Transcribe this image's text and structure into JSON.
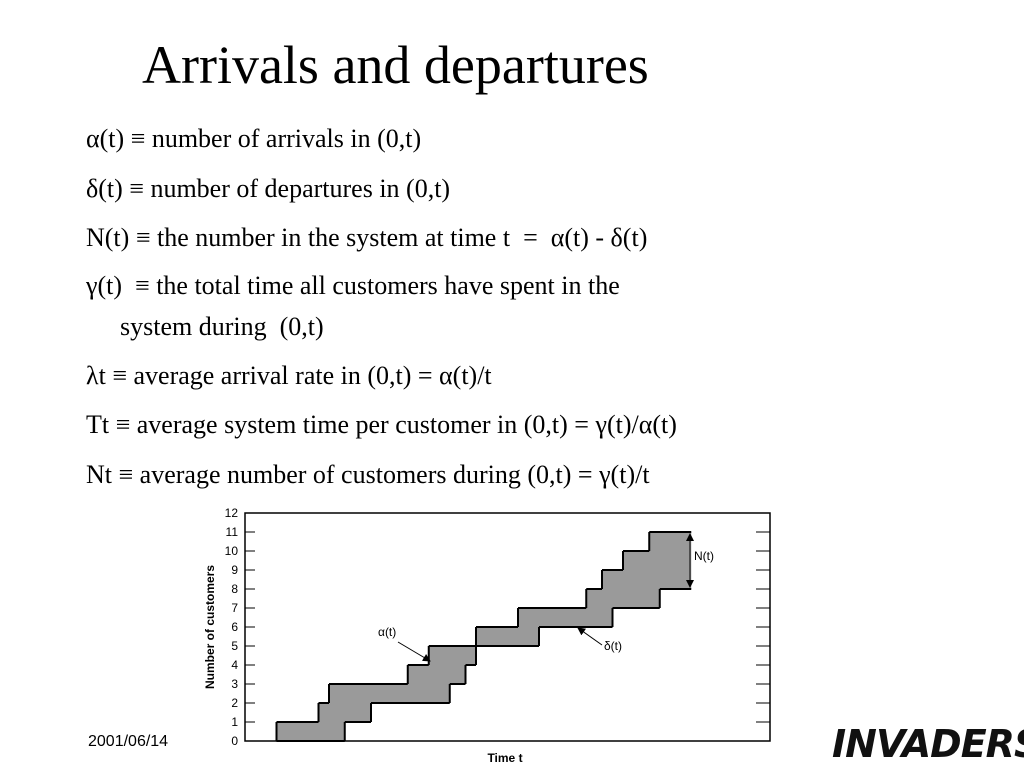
{
  "title": "Arrivals and departures",
  "items": [
    "α(t) ≡ number of arrivals in (0,t)",
    "δ(t) ≡ number of departures in (0,t)",
    "N(t) ≡ the number in the system at time t  =  α(t) - δ(t)",
    "γ(t)  ≡ the total time all customers have spent in the",
    "system during  (0,t)",
    "λt ≡ average arrival rate in (0,t) = α(t)/t",
    "Tt ≡ average system time per customer in (0,t) = γ(t)/α(t)",
    "Nt ≡ average number of customers during (0,t) = γ(t)/t"
  ],
  "chart_data": {
    "type": "step",
    "xlabel": "Time t",
    "ylabel": "Number of customers",
    "xlim": [
      0,
      100
    ],
    "ylim": [
      0,
      12
    ],
    "yticks": [
      0,
      1,
      2,
      3,
      4,
      5,
      6,
      7,
      8,
      9,
      10,
      11,
      12
    ],
    "series": [
      {
        "name": "α(t)",
        "x": [
          6,
          14,
          16,
          31,
          35,
          44,
          52,
          65,
          68,
          72,
          77
        ]
      },
      {
        "name": "δ(t)",
        "x": [
          19,
          24,
          39,
          42,
          44,
          56,
          70,
          79
        ]
      }
    ],
    "annotation": "N(t)"
  },
  "footer": {
    "date": "2001/06/14",
    "logo": "INVADERS"
  }
}
